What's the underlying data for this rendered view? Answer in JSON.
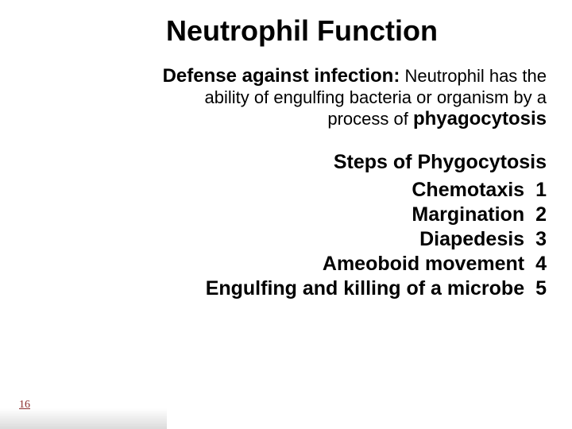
{
  "title": {
    "text": "Neutrophil Function",
    "fontsize": 36,
    "color": "#000000"
  },
  "paragraph": {
    "lead_bold": "Defense against infection:",
    "line1_rest": " Neutrophil has the",
    "line2": "ability of engulfing bacteria or organism by a",
    "line3_plain": "process of ",
    "line3_bold": "phyagocytosis",
    "lead_fontsize": 24,
    "body_fontsize": 22,
    "color": "#000000"
  },
  "steps_title": {
    "text": "Steps of Phygocytosis",
    "fontsize": 25,
    "color": "#000000"
  },
  "steps": {
    "fontsize": 25,
    "color": "#000000",
    "items": [
      {
        "label": "Chemotaxis",
        "num": "1"
      },
      {
        "label": "Margination",
        "num": "2"
      },
      {
        "label": "Diapedesis",
        "num": "3"
      },
      {
        "label": "Ameoboid movement",
        "num": "4"
      },
      {
        "label": "Engulfing and killing of a microbe",
        "num": "5"
      }
    ]
  },
  "page_number": {
    "text": "16",
    "fontsize": 14,
    "color": "#8b2e2e"
  },
  "background_color": "#ffffff"
}
